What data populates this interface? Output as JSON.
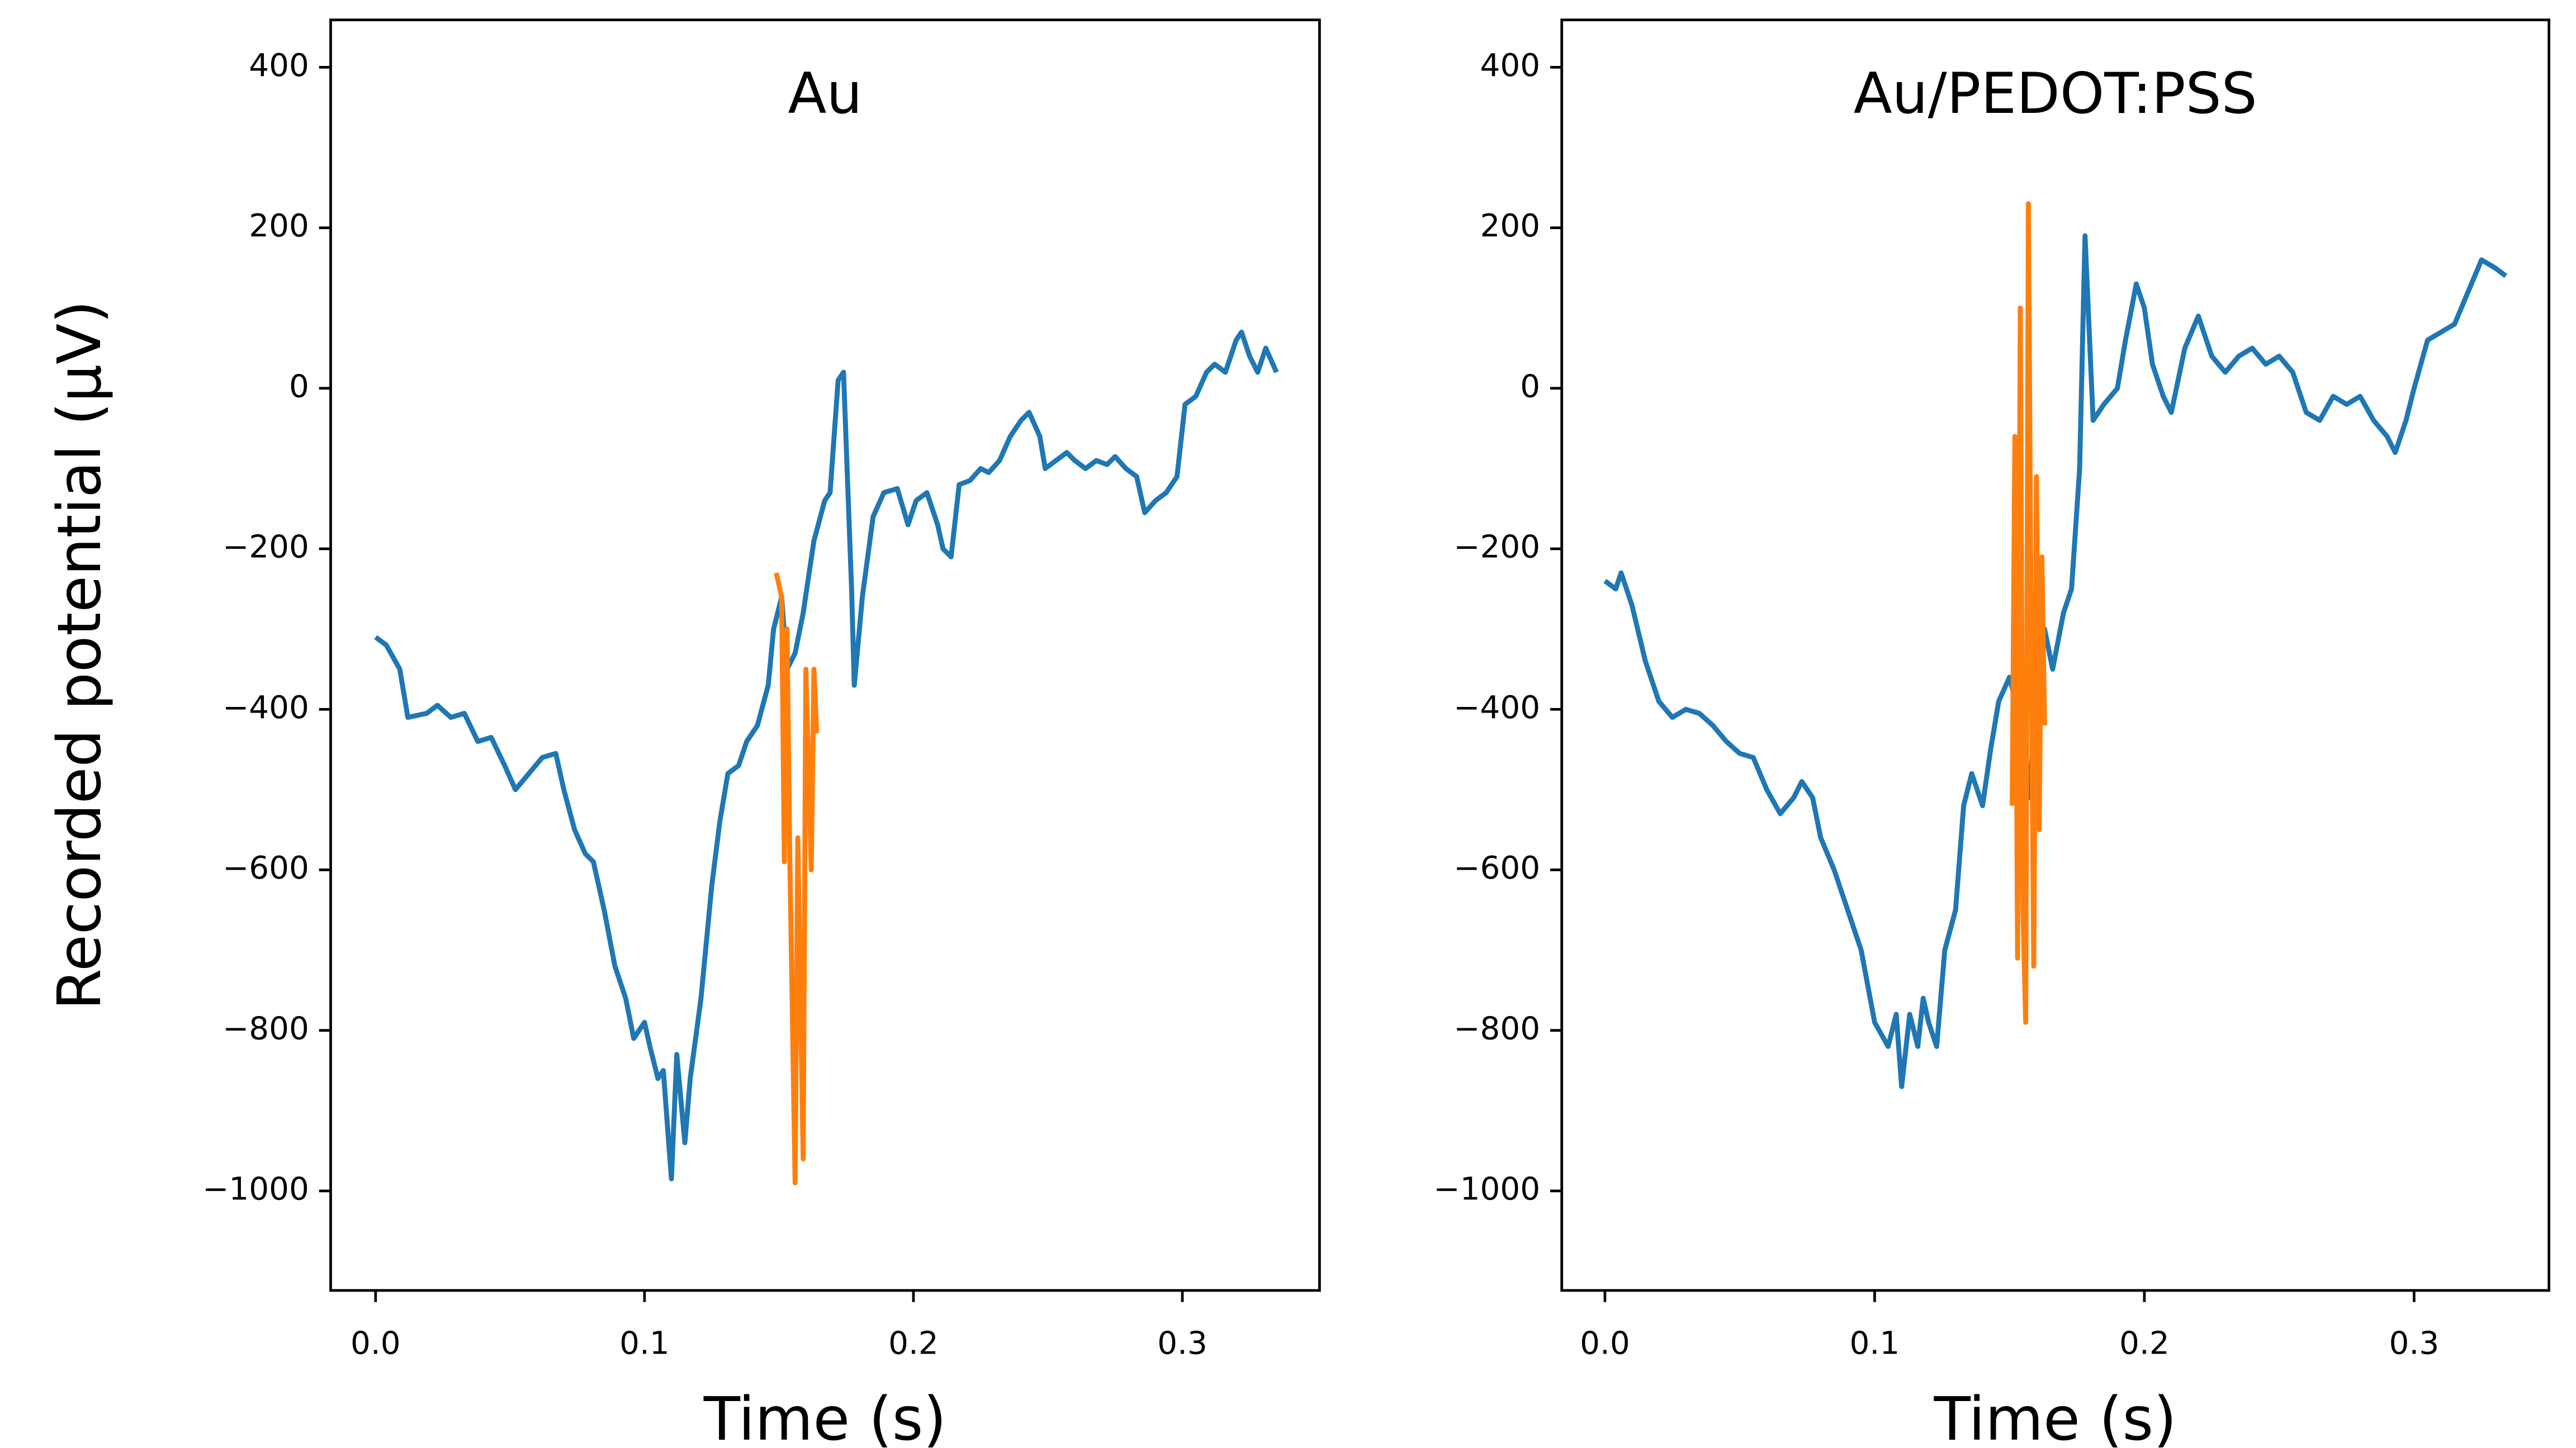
{
  "chart_data": [
    {
      "type": "line",
      "title": "Au",
      "xlabel": "Time (s)",
      "ylabel": "Recorded potential (µV)",
      "xlim": [
        -0.0167,
        0.351
      ],
      "ylim": [
        -1124,
        459
      ],
      "xticks": [
        {
          "value": 0,
          "label": "0.0"
        },
        0.1,
        0.2,
        0.3
      ],
      "yticks": [
        {
          "value": -1000,
          "label": "−1000"
        },
        {
          "value": -800,
          "label": "−800"
        },
        {
          "value": -600,
          "label": "−600"
        },
        {
          "value": -400,
          "label": "−400"
        },
        {
          "value": -200,
          "label": "−200"
        },
        0,
        200,
        400
      ],
      "series": [
        {
          "color": "#1f77b4",
          "x": [
            0,
            0.004,
            0.009,
            0.012,
            0.019,
            0.023,
            0.028,
            0.033,
            0.038,
            0.043,
            0.048,
            0.052,
            0.057,
            0.062,
            0.067,
            0.07,
            0.074,
            0.078,
            0.081,
            0.085,
            0.089,
            0.093,
            0.096,
            0.1,
            0.102,
            0.105,
            0.107,
            0.11,
            0.112,
            0.115,
            0.117,
            0.121,
            0.125,
            0.128,
            0.131,
            0.135,
            0.138,
            0.142,
            0.146,
            0.148,
            0.151,
            0.153,
            0.156,
            0.159,
            0.163,
            0.167,
            0.169,
            0.172,
            0.174,
            0.177,
            0.178,
            0.181,
            0.185,
            0.189,
            0.194,
            0.198,
            0.201,
            0.205,
            0.209,
            0.211,
            0.214,
            0.217,
            0.221,
            0.225,
            0.228,
            0.232,
            0.236,
            0.24,
            0.243,
            0.247,
            0.249,
            0.253,
            0.257,
            0.26,
            0.264,
            0.268,
            0.272,
            0.275,
            0.279,
            0.283,
            0.286,
            0.29,
            0.294,
            0.298,
            0.301,
            0.305,
            0.309,
            0.312,
            0.316,
            0.32,
            0.322,
            0.325,
            0.328,
            0.331,
            0.335
          ],
          "values": [
            -310,
            -320,
            -350,
            -410,
            -405,
            -395,
            -410,
            -405,
            -440,
            -435,
            -470,
            -500,
            -480,
            -460,
            -455,
            -500,
            -550,
            -580,
            -590,
            -650,
            -720,
            -760,
            -810,
            -790,
            -820,
            -860,
            -850,
            -985,
            -830,
            -940,
            -860,
            -760,
            -620,
            -540,
            -480,
            -470,
            -440,
            -420,
            -370,
            -300,
            -260,
            -350,
            -330,
            -280,
            -190,
            -140,
            -130,
            10,
            20,
            -250,
            -370,
            -260,
            -160,
            -130,
            -125,
            -170,
            -140,
            -130,
            -170,
            -200,
            -210,
            -120,
            -115,
            -100,
            -105,
            -90,
            -60,
            -40,
            -30,
            -60,
            -100,
            -90,
            -80,
            -90,
            -100,
            -90,
            -95,
            -85,
            -100,
            -110,
            -155,
            -140,
            -130,
            -110,
            -20,
            -10,
            20,
            30,
            20,
            60,
            70,
            40,
            20,
            50,
            20
          ]
        },
        {
          "color": "#ff7f0e",
          "x": [
            0.149,
            0.151,
            0.152,
            0.153,
            0.154,
            0.156,
            0.157,
            0.159,
            0.16,
            0.162,
            0.163,
            0.164
          ],
          "values": [
            -230,
            -260,
            -590,
            -300,
            -580,
            -990,
            -560,
            -960,
            -350,
            -600,
            -350,
            -430
          ]
        }
      ]
    },
    {
      "type": "line",
      "title": "Au/PEDOT:PSS",
      "xlabel": "Time (s)",
      "xlim": [
        -0.016,
        0.35
      ],
      "ylim": [
        -1124,
        459
      ],
      "xticks": [
        {
          "value": 0,
          "label": "0.0"
        },
        0.1,
        0.2,
        0.3
      ],
      "yticks": [
        {
          "value": -1000,
          "label": "−1000"
        },
        {
          "value": -800,
          "label": "−800"
        },
        {
          "value": -600,
          "label": "−600"
        },
        {
          "value": -400,
          "label": "−400"
        },
        {
          "value": -200,
          "label": "−200"
        },
        0,
        200,
        400
      ],
      "series": [
        {
          "color": "#1f77b4",
          "x": [
            0,
            0.004,
            0.006,
            0.01,
            0.015,
            0.02,
            0.025,
            0.03,
            0.035,
            0.04,
            0.045,
            0.05,
            0.055,
            0.06,
            0.065,
            0.07,
            0.073,
            0.077,
            0.08,
            0.085,
            0.09,
            0.095,
            0.1,
            0.105,
            0.108,
            0.11,
            0.113,
            0.116,
            0.118,
            0.12,
            0.123,
            0.126,
            0.13,
            0.133,
            0.136,
            0.14,
            0.143,
            0.146,
            0.15,
            0.153,
            0.157,
            0.16,
            0.163,
            0.166,
            0.17,
            0.173,
            0.176,
            0.178,
            0.181,
            0.185,
            0.19,
            0.193,
            0.197,
            0.2,
            0.203,
            0.207,
            0.21,
            0.215,
            0.22,
            0.225,
            0.23,
            0.235,
            0.24,
            0.245,
            0.25,
            0.255,
            0.26,
            0.265,
            0.27,
            0.275,
            0.28,
            0.285,
            0.29,
            0.293,
            0.297,
            0.3,
            0.305,
            0.31,
            0.315,
            0.32,
            0.325,
            0.33,
            0.334
          ],
          "values": [
            -240,
            -250,
            -230,
            -270,
            -340,
            -390,
            -410,
            -400,
            -405,
            -420,
            -440,
            -455,
            -460,
            -500,
            -530,
            -510,
            -490,
            -510,
            -560,
            -600,
            -650,
            -700,
            -790,
            -820,
            -780,
            -870,
            -780,
            -820,
            -760,
            -790,
            -820,
            -700,
            -650,
            -520,
            -480,
            -520,
            -450,
            -390,
            -360,
            -400,
            -510,
            -400,
            -300,
            -350,
            -280,
            -250,
            -100,
            190,
            -40,
            -20,
            0,
            60,
            130,
            100,
            30,
            -10,
            -30,
            50,
            90,
            40,
            20,
            40,
            50,
            30,
            40,
            20,
            -30,
            -40,
            -10,
            -20,
            -10,
            -40,
            -60,
            -80,
            -40,
            0,
            60,
            70,
            80,
            120,
            160,
            150,
            140
          ]
        },
        {
          "color": "#ff7f0e",
          "x": [
            0.151,
            0.152,
            0.153,
            0.154,
            0.155,
            0.156,
            0.157,
            0.158,
            0.159,
            0.16,
            0.161,
            0.162,
            0.163
          ],
          "values": [
            -520,
            -60,
            -710,
            100,
            -650,
            -790,
            230,
            -300,
            -720,
            -110,
            -550,
            -210,
            -420
          ]
        }
      ]
    }
  ]
}
